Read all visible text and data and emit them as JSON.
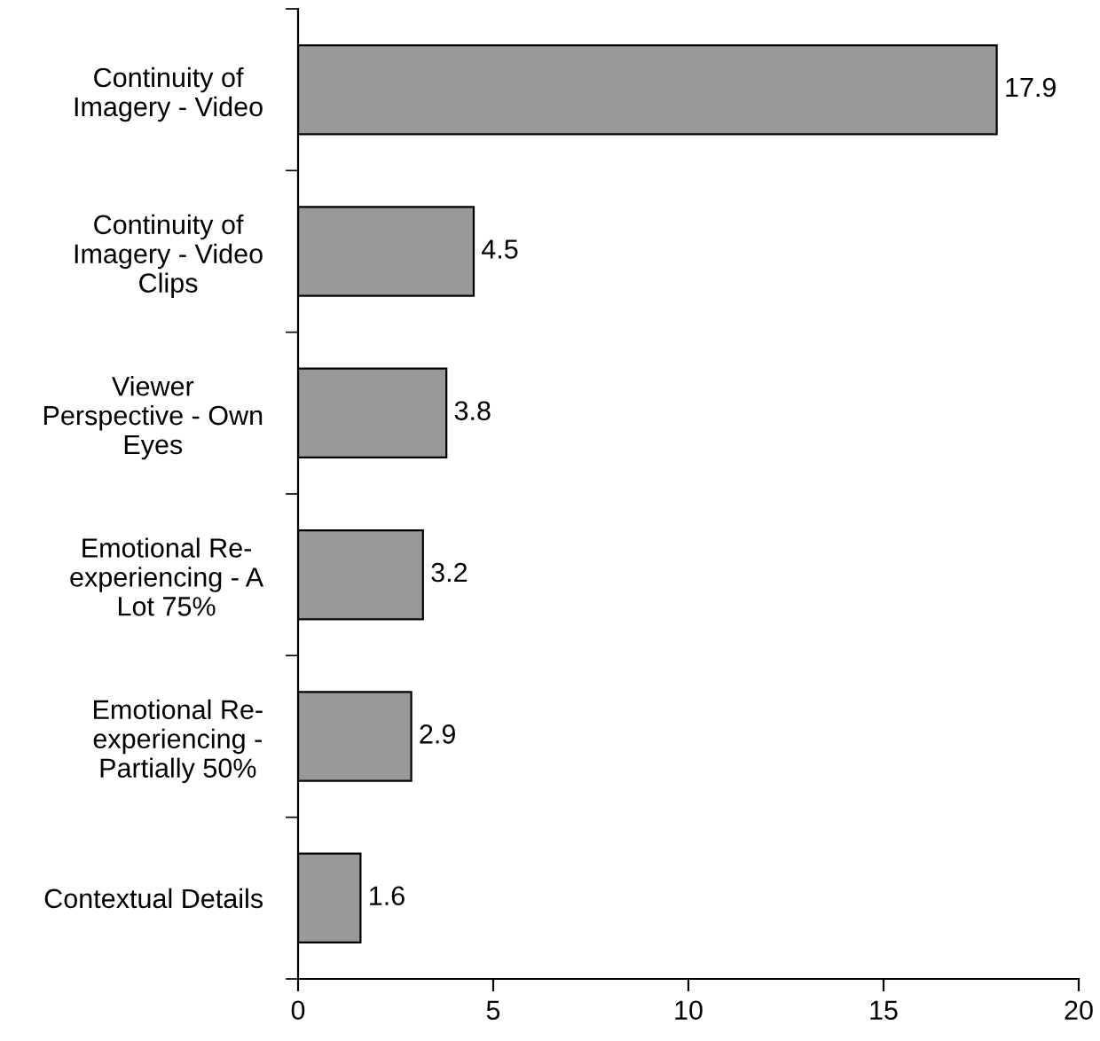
{
  "chart_data": {
    "type": "bar",
    "orientation": "horizontal",
    "categories": [
      "Continuity of\nImagery - Video",
      "Continuity of\nImagery - Video\nClips",
      "Viewer\nPerspective - Own\nEyes",
      "Emotional Re-\nexperiencing - A\nLot 75%",
      "Emotional Re-\nexperiencing -\nPartially 50%",
      "Contextual Details"
    ],
    "values": [
      17.9,
      4.5,
      3.8,
      3.2,
      2.9,
      1.6
    ],
    "color": "#999999",
    "data_labels": true,
    "xlim": [
      0,
      20
    ],
    "xticks": [
      0,
      5,
      10,
      15,
      20
    ],
    "grid": false,
    "legend": false
  }
}
